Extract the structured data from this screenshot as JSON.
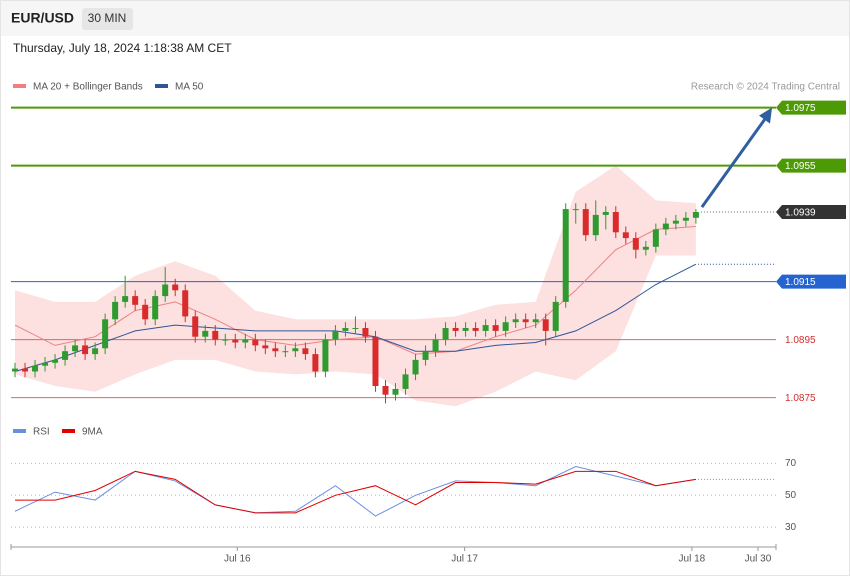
{
  "header": {
    "symbol": "EUR/USD",
    "interval": "30 MIN",
    "timestamp": "Thursday, July 18, 2024 1:18:38 AM CET",
    "credit": "Research © 2024 Trading Central"
  },
  "chart_data": {
    "type": "candlestick",
    "xlim": [
      -0.4,
      76
    ],
    "ylim": [
      1.0869,
      1.0979
    ],
    "xticks": [
      {
        "value": 22.2,
        "label": "Jul 16"
      },
      {
        "value": 44.9,
        "label": "Jul 17"
      },
      {
        "value": 67.6,
        "label": "Jul 18"
      },
      {
        "value": 74.2,
        "label": "Jul 30"
      }
    ],
    "up_color": "#2f9a2f",
    "down_color": "#d92b2b",
    "candles": [
      [
        1.0884,
        1.0887,
        1.0882,
        1.0885
      ],
      [
        1.0885,
        1.0887,
        1.0882,
        1.0884
      ],
      [
        1.0884,
        1.0888,
        1.0882,
        1.0886
      ],
      [
        1.0886,
        1.0889,
        1.0884,
        1.0887
      ],
      [
        1.0887,
        1.089,
        1.0885,
        1.0888
      ],
      [
        1.0888,
        1.0893,
        1.0886,
        1.0891
      ],
      [
        1.0891,
        1.0895,
        1.0889,
        1.0893
      ],
      [
        1.0893,
        1.0895,
        1.0888,
        1.089
      ],
      [
        1.089,
        1.0894,
        1.0888,
        1.0892
      ],
      [
        1.0892,
        1.0904,
        1.089,
        1.0902
      ],
      [
        1.0902,
        1.091,
        1.09,
        1.0908
      ],
      [
        1.0908,
        1.0917,
        1.0906,
        1.091
      ],
      [
        1.091,
        1.0912,
        1.0905,
        1.0907
      ],
      [
        1.0907,
        1.0909,
        1.09,
        1.0902
      ],
      [
        1.0902,
        1.0912,
        1.09,
        1.091
      ],
      [
        1.091,
        1.092,
        1.0908,
        1.0914
      ],
      [
        1.0914,
        1.0916,
        1.091,
        1.0912
      ],
      [
        1.0912,
        1.0914,
        1.0901,
        1.0903
      ],
      [
        1.0903,
        1.0905,
        1.0894,
        1.0896
      ],
      [
        1.0896,
        1.09,
        1.0894,
        1.0898
      ],
      [
        1.0898,
        1.09,
        1.0893,
        1.0895
      ],
      [
        1.0895,
        1.0897,
        1.0893,
        1.0895
      ],
      [
        1.0895,
        1.0897,
        1.0892,
        1.0894
      ],
      [
        1.0894,
        1.0897,
        1.0892,
        1.0895
      ],
      [
        1.0895,
        1.0897,
        1.0891,
        1.0893
      ],
      [
        1.0893,
        1.0895,
        1.089,
        1.0892
      ],
      [
        1.0892,
        1.0894,
        1.0889,
        1.0891
      ],
      [
        1.0891,
        1.0893,
        1.0889,
        1.0891
      ],
      [
        1.0891,
        1.0894,
        1.0889,
        1.0892
      ],
      [
        1.0892,
        1.0894,
        1.0888,
        1.089
      ],
      [
        1.089,
        1.0892,
        1.0882,
        1.0884
      ],
      [
        1.0884,
        1.0897,
        1.0882,
        1.0895
      ],
      [
        1.0895,
        1.09,
        1.0893,
        1.0898
      ],
      [
        1.0898,
        1.0901,
        1.0896,
        1.0899
      ],
      [
        1.0899,
        1.0903,
        1.0897,
        1.0899
      ],
      [
        1.0899,
        1.0901,
        1.0894,
        1.0896
      ],
      [
        1.0896,
        1.0898,
        1.0877,
        1.0879
      ],
      [
        1.0879,
        1.0881,
        1.0873,
        1.0876
      ],
      [
        1.0876,
        1.088,
        1.0874,
        1.0878
      ],
      [
        1.0878,
        1.0885,
        1.0876,
        1.0883
      ],
      [
        1.0883,
        1.089,
        1.0881,
        1.0888
      ],
      [
        1.0888,
        1.0893,
        1.0886,
        1.0891
      ],
      [
        1.0891,
        1.0897,
        1.0889,
        1.0895
      ],
      [
        1.0895,
        1.0901,
        1.0893,
        1.0899
      ],
      [
        1.0899,
        1.0901,
        1.0896,
        1.0898
      ],
      [
        1.0898,
        1.0901,
        1.0896,
        1.0899
      ],
      [
        1.0899,
        1.0901,
        1.0896,
        1.0898
      ],
      [
        1.0898,
        1.0902,
        1.0896,
        1.09
      ],
      [
        1.09,
        1.0902,
        1.0896,
        1.0898
      ],
      [
        1.0898,
        1.0903,
        1.0896,
        1.0901
      ],
      [
        1.0901,
        1.0904,
        1.0899,
        1.0902
      ],
      [
        1.0902,
        1.0904,
        1.0899,
        1.0901
      ],
      [
        1.0901,
        1.0904,
        1.0899,
        1.0902
      ],
      [
        1.0902,
        1.0904,
        1.0893,
        1.0898
      ],
      [
        1.0898,
        1.091,
        1.0896,
        1.0908
      ],
      [
        1.0908,
        1.0942,
        1.0906,
        1.094
      ],
      [
        1.094,
        1.0942,
        1.0935,
        1.094
      ],
      [
        1.094,
        1.0942,
        1.0929,
        1.0931
      ],
      [
        1.0931,
        1.0943,
        1.0929,
        1.0938
      ],
      [
        1.0938,
        1.0941,
        1.0933,
        1.0939
      ],
      [
        1.0939,
        1.0941,
        1.093,
        1.0932
      ],
      [
        1.0932,
        1.0934,
        1.0928,
        1.093
      ],
      [
        1.093,
        1.0932,
        1.0923,
        1.0926
      ],
      [
        1.0926,
        1.0929,
        1.0924,
        1.0927
      ],
      [
        1.0927,
        1.0935,
        1.0925,
        1.0933
      ],
      [
        1.0933,
        1.0937,
        1.0931,
        1.0935
      ],
      [
        1.0935,
        1.0938,
        1.0933,
        1.0936
      ],
      [
        1.0936,
        1.0939,
        1.0934,
        1.0937
      ],
      [
        1.0937,
        1.094,
        1.0935,
        1.0939
      ]
    ],
    "overlay_x": [
      0,
      4,
      8,
      12,
      16,
      20,
      24,
      28,
      32,
      36,
      40,
      44,
      48,
      52,
      56,
      60,
      64,
      68
    ],
    "bands": {
      "name": "MA 20 + Bollinger Bands",
      "color": "#f08080",
      "fill": "#fde0e0",
      "ma": [
        1.09,
        1.0893,
        1.0896,
        1.0905,
        1.0908,
        1.0902,
        1.0895,
        1.0893,
        1.0895,
        1.0896,
        1.089,
        1.0891,
        1.0896,
        1.09,
        1.0912,
        1.0926,
        1.0933,
        1.0934
      ],
      "upper": [
        1.0912,
        1.0908,
        1.0908,
        1.0917,
        1.0922,
        1.0917,
        1.0905,
        1.0902,
        1.0902,
        1.0902,
        1.0902,
        1.0903,
        1.0907,
        1.0908,
        1.0946,
        1.0955,
        1.0943,
        1.0942
      ],
      "lower": [
        1.0883,
        1.0879,
        1.0877,
        1.0883,
        1.0888,
        1.0888,
        1.0884,
        1.0883,
        1.0884,
        1.0883,
        1.0874,
        1.0872,
        1.0877,
        1.0884,
        1.0881,
        1.0891,
        1.0924,
        1.0924
      ]
    },
    "ma50": {
      "name": "MA 50",
      "color": "#2f5597",
      "values": [
        1.0884,
        1.0888,
        1.0893,
        1.0898,
        1.09,
        1.0899,
        1.0898,
        1.0898,
        1.0898,
        1.0896,
        1.0891,
        1.0891,
        1.0893,
        1.0894,
        1.0898,
        1.0905,
        1.0914,
        1.0921
      ]
    },
    "levels": [
      {
        "value": 1.0975,
        "color": "#4e9a06",
        "tag": true
      },
      {
        "value": 1.0955,
        "color": "#4e9a06",
        "tag": true
      },
      {
        "value": 1.0939,
        "color": "#333333",
        "tag": true
      },
      {
        "value": 1.0915,
        "color": "#2463d0",
        "tag": true
      },
      {
        "value": 1.0895,
        "color": "#e06666",
        "tag": false
      },
      {
        "value": 1.0875,
        "color": "#e06666",
        "tag": false
      }
    ],
    "rsi": {
      "ylim": [
        22,
        84
      ],
      "yticks": [
        30,
        50,
        70
      ],
      "series": [
        {
          "name": "RSI",
          "color": "#6a8ee0",
          "values": [
            40,
            52,
            47,
            65,
            59,
            44,
            39,
            40,
            56,
            37,
            50,
            59,
            58,
            56,
            68,
            62,
            56,
            60
          ]
        },
        {
          "name": "9MA",
          "color": "#e00000",
          "values": [
            47,
            47,
            53,
            65,
            60,
            44,
            39,
            39,
            50,
            56,
            44,
            58,
            58,
            57,
            65,
            65,
            56,
            60
          ]
        }
      ]
    }
  }
}
